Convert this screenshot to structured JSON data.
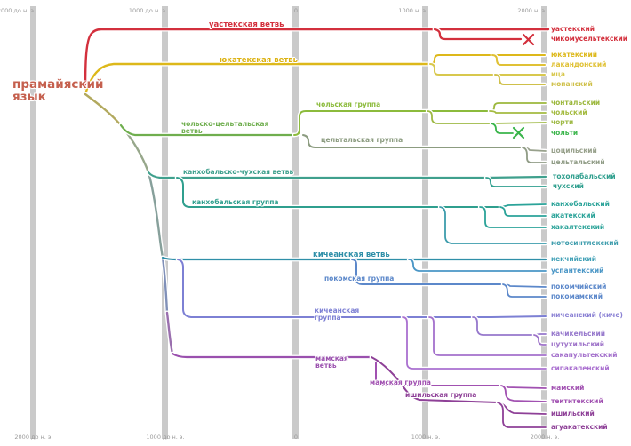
{
  "root": {
    "label": "прамайяский язык"
  },
  "timeline": {
    "labels": [
      "2000 до н. э.",
      "1000 до н. э.",
      "0",
      "1000 н. э.",
      "2000 н. э."
    ]
  },
  "branch_labels": [
    {
      "id": "huastecan",
      "label": "уастекская ветвь"
    },
    {
      "id": "yucatecan",
      "label": "юкатекская ветвь"
    },
    {
      "id": "cholan",
      "label": "чольская группа"
    },
    {
      "id": "cholan-tzeltalan",
      "label": "чольско-цельтальская ветвь"
    },
    {
      "id": "tzeltalan",
      "label": "цельтальская группа"
    },
    {
      "id": "qanjobalan-chujean",
      "label": "канхобальско-чухская ветвь"
    },
    {
      "id": "qanjobalan",
      "label": "канхобальская группа"
    },
    {
      "id": "quichean",
      "label": "кичеанская ветвь"
    },
    {
      "id": "poqom",
      "label": "покомская группа"
    },
    {
      "id": "quichean-proper",
      "label": "кичеанская группа"
    },
    {
      "id": "mamean",
      "label": "мамская ветвь"
    },
    {
      "id": "mam-group",
      "label": "мамская группа"
    },
    {
      "id": "ixilean",
      "label": "ишильская группа"
    }
  ],
  "leaves": [
    {
      "label": "уастекский"
    },
    {
      "label": "чикомусельтекский",
      "extinct": true
    },
    {
      "label": "юкатекский"
    },
    {
      "label": "лакандонский"
    },
    {
      "label": "ица"
    },
    {
      "label": "мопанский"
    },
    {
      "label": "чонтальский"
    },
    {
      "label": "чольский"
    },
    {
      "label": "чорти"
    },
    {
      "label": "чольти",
      "extinct": true
    },
    {
      "label": "цоцильский"
    },
    {
      "label": "цельтальский"
    },
    {
      "label": "тохолабальский"
    },
    {
      "label": "чухский"
    },
    {
      "label": "канхобальский"
    },
    {
      "label": "акатекский"
    },
    {
      "label": "хакалтекский"
    },
    {
      "label": "мотосинтлекский"
    },
    {
      "label": "кекчийский"
    },
    {
      "label": "успантекский"
    },
    {
      "label": "покомчийский"
    },
    {
      "label": "покомамский"
    },
    {
      "label": "кичеанский (киче)"
    },
    {
      "label": "качикельский"
    },
    {
      "label": "цутухильский"
    },
    {
      "label": "сакапультекский"
    },
    {
      "label": "сипакапенский"
    },
    {
      "label": "мамский"
    },
    {
      "label": "тектитекский"
    },
    {
      "label": "ишильский"
    },
    {
      "label": "агуакатекский"
    }
  ],
  "extinct_marker": "✗",
  "colors": {
    "huastecan_red": "#d3303d",
    "yucatecan_yellow": "#ddb81a",
    "cholan_green": "#8cbb3c",
    "cholti_bright_green": "#3ab54b",
    "tzeltalan_olive": "#909c86",
    "qanjobalan_teal": "#2f9f8e",
    "mocho_blue_teal": "#3d9cac",
    "quichean_blue": "#2f8fa8",
    "poqom_blue": "#5c88ca",
    "quichean_violet": "#7d80d4",
    "mamean_purple": "#a151b1",
    "ixilean_dark_purple": "#8e4097",
    "root_brown": "#c5604e",
    "timeline_gray": "#cacaca"
  }
}
